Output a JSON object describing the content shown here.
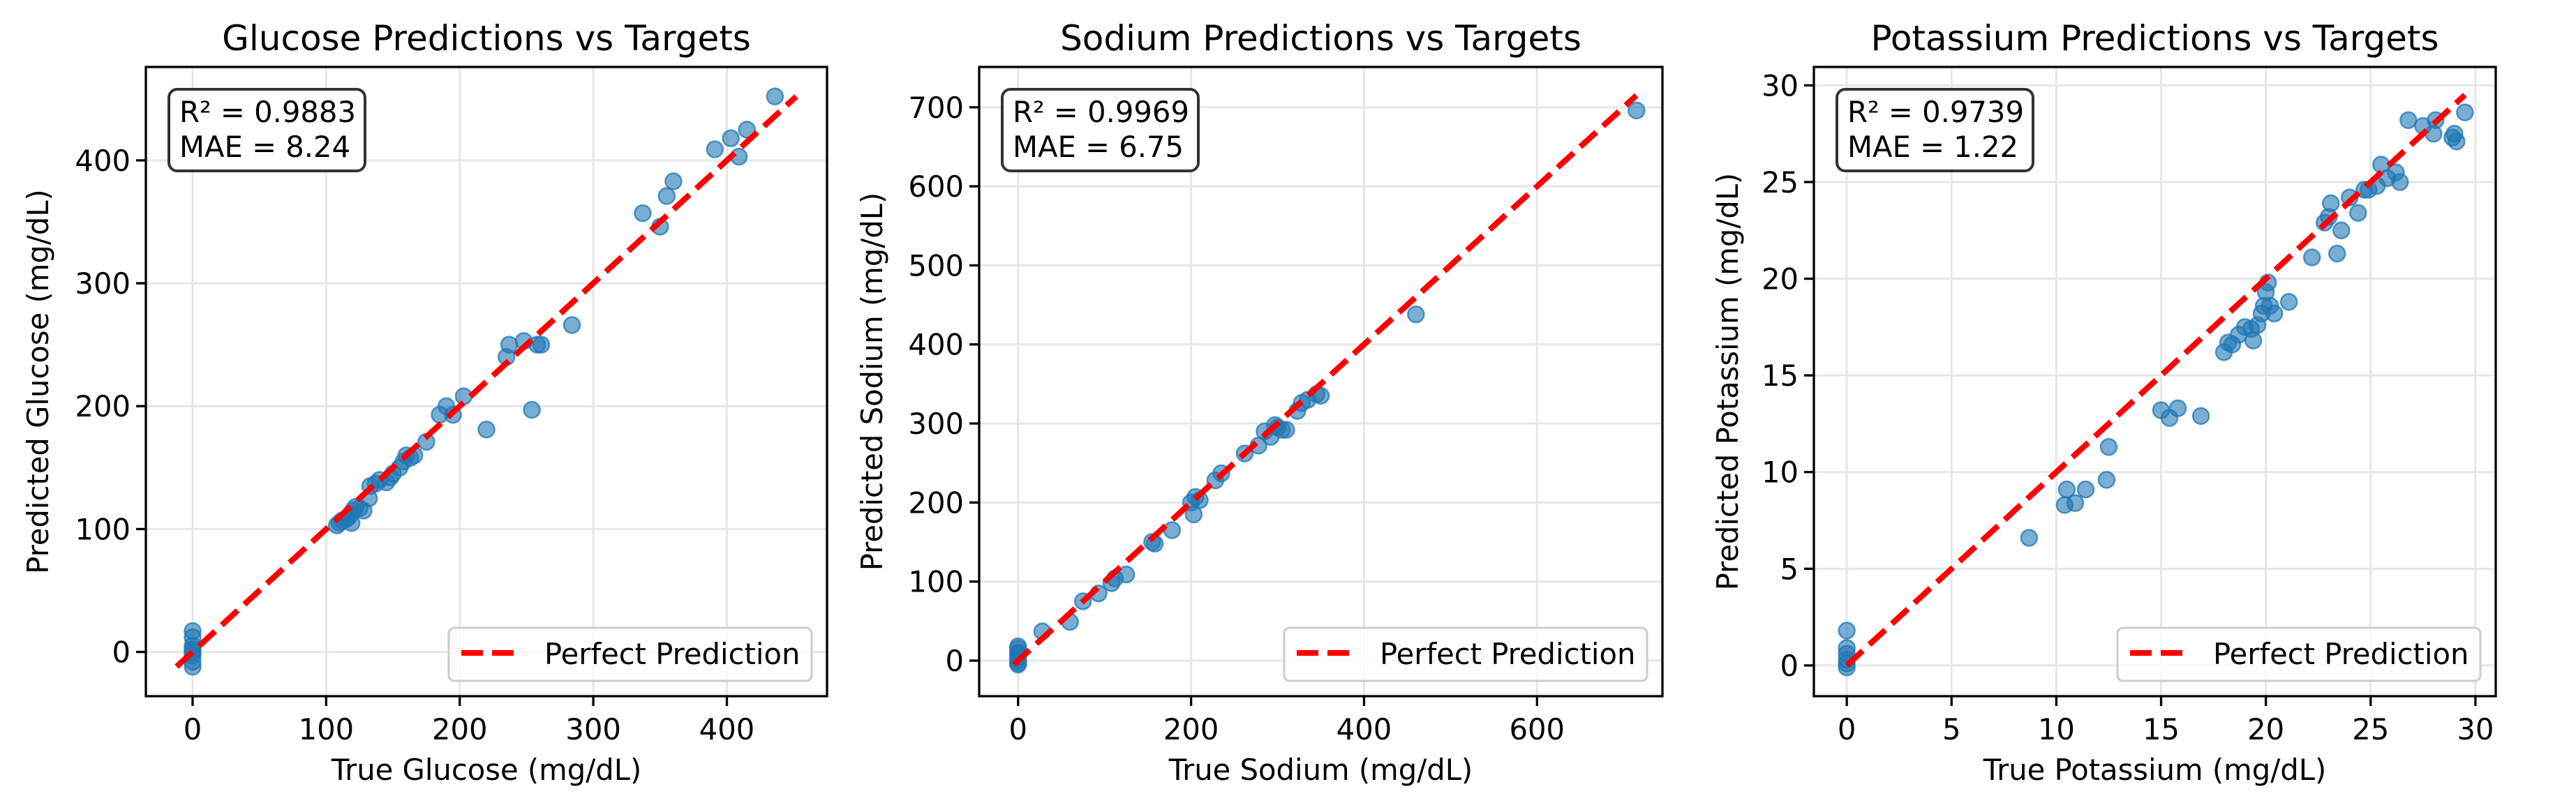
{
  "chart_data": [
    {
      "type": "scatter",
      "title": "Glucose Predictions vs Targets",
      "xlabel": "True Glucose (mg/dL)",
      "ylabel": "Predicted Glucose (mg/dL)",
      "xlim": [
        -35,
        475
      ],
      "ylim": [
        -36,
        476
      ],
      "xticks": [
        0,
        100,
        200,
        300,
        400
      ],
      "yticks": [
        0,
        100,
        200,
        300,
        400
      ],
      "grid": true,
      "stats": [
        "R² = 0.9883",
        "MAE = 8.24"
      ],
      "legend": {
        "label": "Perfect Prediction",
        "placement": "lower-right"
      },
      "reference_line": [
        -12,
        452
      ],
      "points": [
        [
          0,
          17
        ],
        [
          0,
          12
        ],
        [
          0,
          5
        ],
        [
          0,
          2
        ],
        [
          0,
          0
        ],
        [
          0,
          -3
        ],
        [
          0,
          -8
        ],
        [
          0,
          -12
        ],
        [
          108,
          103
        ],
        [
          110,
          105
        ],
        [
          112,
          107
        ],
        [
          115,
          108
        ],
        [
          117,
          110
        ],
        [
          118,
          112
        ],
        [
          120,
          115
        ],
        [
          122,
          118
        ],
        [
          119,
          105
        ],
        [
          125,
          117
        ],
        [
          128,
          115
        ],
        [
          132,
          125
        ],
        [
          133,
          135
        ],
        [
          137,
          137
        ],
        [
          140,
          140
        ],
        [
          145,
          138
        ],
        [
          148,
          142
        ],
        [
          150,
          145
        ],
        [
          155,
          150
        ],
        [
          158,
          155
        ],
        [
          160,
          160
        ],
        [
          163,
          158
        ],
        [
          166,
          160
        ],
        [
          175,
          171
        ],
        [
          185,
          193
        ],
        [
          190,
          200
        ],
        [
          195,
          193
        ],
        [
          203,
          208
        ],
        [
          220,
          181
        ],
        [
          235,
          240
        ],
        [
          237,
          250
        ],
        [
          248,
          253
        ],
        [
          258,
          250
        ],
        [
          261,
          250
        ],
        [
          254,
          197
        ],
        [
          284,
          266
        ],
        [
          337,
          357
        ],
        [
          355,
          371
        ],
        [
          360,
          383
        ],
        [
          350,
          346
        ],
        [
          391,
          409
        ],
        [
          403,
          418
        ],
        [
          409,
          403
        ],
        [
          415,
          425
        ],
        [
          436,
          452
        ]
      ]
    },
    {
      "type": "scatter",
      "title": "Sodium Predictions vs Targets",
      "xlabel": "True Sodium (mg/dL)",
      "ylabel": "Predicted Sodium (mg/dL)",
      "xlim": [
        -45,
        745
      ],
      "ylim": [
        -45,
        751
      ],
      "xticks": [
        0,
        200,
        400,
        600
      ],
      "yticks": [
        0,
        100,
        200,
        300,
        400,
        500,
        600,
        700
      ],
      "grid": true,
      "stats": [
        "R² = 0.9969",
        "MAE = 6.75"
      ],
      "legend": {
        "label": "Perfect Prediction",
        "placement": "lower-right"
      },
      "reference_line": [
        -5,
        715
      ],
      "points": [
        [
          0,
          -5
        ],
        [
          0,
          0
        ],
        [
          0,
          5
        ],
        [
          0,
          10
        ],
        [
          0,
          15
        ],
        [
          0,
          18
        ],
        [
          0,
          -3
        ],
        [
          0,
          8
        ],
        [
          28,
          37
        ],
        [
          60,
          49
        ],
        [
          75,
          75
        ],
        [
          93,
          85
        ],
        [
          108,
          98
        ],
        [
          112,
          104
        ],
        [
          125,
          109
        ],
        [
          155,
          150
        ],
        [
          158,
          148
        ],
        [
          178,
          165
        ],
        [
          200,
          200
        ],
        [
          205,
          207
        ],
        [
          203,
          185
        ],
        [
          210,
          203
        ],
        [
          228,
          228
        ],
        [
          235,
          237
        ],
        [
          262,
          262
        ],
        [
          278,
          272
        ],
        [
          285,
          290
        ],
        [
          292,
          283
        ],
        [
          297,
          298
        ],
        [
          300,
          295
        ],
        [
          305,
          292
        ],
        [
          310,
          292
        ],
        [
          323,
          316
        ],
        [
          328,
          326
        ],
        [
          335,
          330
        ],
        [
          345,
          337
        ],
        [
          350,
          335
        ],
        [
          460,
          438
        ],
        [
          715,
          696
        ]
      ]
    },
    {
      "type": "scatter",
      "title": "Potassium Predictions vs Targets",
      "xlabel": "True Potassium (mg/dL)",
      "ylabel": "Predicted Potassium (mg/dL)",
      "xlim": [
        -1.57,
        30.97
      ],
      "ylim": [
        -1.59,
        30.95
      ],
      "xticks": [
        0,
        5,
        10,
        15,
        20,
        25,
        30
      ],
      "yticks": [
        0,
        5,
        10,
        15,
        20,
        25,
        30
      ],
      "grid": true,
      "stats": [
        "R² = 0.9739",
        "MAE = 1.22"
      ],
      "legend": {
        "label": "Perfect Prediction",
        "placement": "lower-right"
      },
      "reference_line": [
        0,
        29.5
      ],
      "points": [
        [
          0,
          1.8
        ],
        [
          0,
          0.9
        ],
        [
          0,
          0.6
        ],
        [
          0,
          0.3
        ],
        [
          0,
          0.1
        ],
        [
          0,
          -0.1
        ],
        [
          8.7,
          6.6
        ],
        [
          10.4,
          8.3
        ],
        [
          10.5,
          9.1
        ],
        [
          10.9,
          8.4
        ],
        [
          11.4,
          9.1
        ],
        [
          12.4,
          9.6
        ],
        [
          12.5,
          11.3
        ],
        [
          15,
          13.2
        ],
        [
          15.4,
          12.8
        ],
        [
          15.8,
          13.3
        ],
        [
          16.9,
          12.9
        ],
        [
          18.0,
          16.2
        ],
        [
          18.2,
          16.7
        ],
        [
          18.4,
          16.6
        ],
        [
          18.7,
          17.1
        ],
        [
          19.0,
          17.5
        ],
        [
          19.3,
          17.4
        ],
        [
          19.4,
          16.8
        ],
        [
          19.6,
          17.6
        ],
        [
          19.8,
          18.2
        ],
        [
          19.9,
          18.6
        ],
        [
          20.0,
          19.3
        ],
        [
          20.1,
          19.8
        ],
        [
          20.2,
          18.6
        ],
        [
          20.4,
          18.2
        ],
        [
          21.1,
          18.8
        ],
        [
          22.2,
          21.1
        ],
        [
          22.8,
          22.9
        ],
        [
          23.0,
          23.2
        ],
        [
          23.1,
          23.9
        ],
        [
          23.4,
          21.3
        ],
        [
          23.6,
          22.5
        ],
        [
          24.0,
          24.2
        ],
        [
          24.4,
          23.4
        ],
        [
          24.7,
          24.6
        ],
        [
          24.9,
          24.6
        ],
        [
          25.3,
          24.8
        ],
        [
          25.5,
          25.9
        ],
        [
          25.8,
          25.2
        ],
        [
          26.2,
          25.5
        ],
        [
          26.4,
          25.0
        ],
        [
          26.8,
          28.2
        ],
        [
          27.5,
          27.9
        ],
        [
          28.0,
          27.5
        ],
        [
          28.1,
          28.2
        ],
        [
          28.9,
          27.3
        ],
        [
          29.0,
          27.5
        ],
        [
          29.1,
          27.1
        ],
        [
          29.5,
          28.6
        ]
      ]
    }
  ],
  "colors": {
    "points": "#1f77b4",
    "reference_line": "#ff0000",
    "grid": "#e6e6e6",
    "axes": "#000000"
  }
}
